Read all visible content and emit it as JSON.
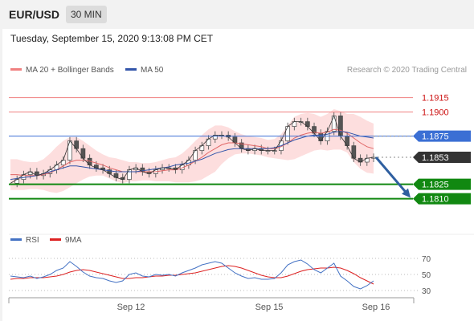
{
  "header": {
    "symbol": "EUR/USD",
    "timeframe": "30 MIN"
  },
  "timestamp": "Tuesday, September 15, 2020 9:13:08 PM CET",
  "legend": {
    "bb_label": "MA 20 + Bollinger Bands",
    "ma50_label": "MA 50",
    "credit": "Research © 2020 Trading Central",
    "rsi_label": "RSI",
    "rsi_ma_label": "9MA"
  },
  "colors": {
    "resistance": "#f08080",
    "resistance_text": "#cc1111",
    "pivot": "#3b6fd4",
    "last": "#333333",
    "support": "#118811",
    "bands": "#fcd6d6",
    "ma20": "#e06666",
    "ma50": "#3355aa",
    "arrow": "#2f5fa0",
    "rsi": "#4472c4",
    "rsi_ma": "#dd2222",
    "candle": "#666666"
  },
  "chart_data": [
    {
      "type": "line",
      "title": "",
      "x_ticks": [
        "Sep 12",
        "Sep 15",
        "Sep 16"
      ],
      "levels": [
        {
          "kind": "resistance",
          "label": "1.1915",
          "value": 1.1915
        },
        {
          "kind": "resistance",
          "label": "1.1900",
          "value": 1.19
        },
        {
          "kind": "pivot",
          "label": "1.1875",
          "value": 1.1875
        },
        {
          "kind": "last",
          "label": "1.1853",
          "value": 1.1853
        },
        {
          "kind": "support",
          "label": "1.1825",
          "value": 1.1825
        },
        {
          "kind": "support",
          "label": "1.1810",
          "value": 1.181
        }
      ],
      "ylim": [
        1.1783,
        1.1933
      ],
      "series": [
        {
          "name": "Price",
          "values": [
            1.1826,
            1.183,
            1.1835,
            1.1838,
            1.1834,
            1.1836,
            1.184,
            1.1845,
            1.185,
            1.187,
            1.1862,
            1.1852,
            1.1845,
            1.1842,
            1.184,
            1.1836,
            1.1832,
            1.183,
            1.184,
            1.1842,
            1.1838,
            1.1836,
            1.184,
            1.1842,
            1.1842,
            1.184,
            1.1845,
            1.185,
            1.186,
            1.1865,
            1.1872,
            1.1876,
            1.1876,
            1.1874,
            1.1868,
            1.1862,
            1.186,
            1.1862,
            1.186,
            1.186,
            1.186,
            1.187,
            1.1885,
            1.189,
            1.189,
            1.1885,
            1.1878,
            1.187,
            1.188,
            1.1896,
            1.1875,
            1.1865,
            1.1852,
            1.1848,
            1.1852,
            1.1853
          ]
        },
        {
          "name": "MA 20 + Bollinger Bands",
          "values": [
            1.1835,
            1.1835,
            1.1834,
            1.1834,
            1.1834,
            1.1835,
            1.1837,
            1.184,
            1.1844,
            1.1848,
            1.185,
            1.185,
            1.1849,
            1.1847,
            1.1845,
            1.1842,
            1.184,
            1.1838,
            1.1838,
            1.1838,
            1.1838,
            1.1838,
            1.1838,
            1.1839,
            1.184,
            1.184,
            1.1842,
            1.1845,
            1.1849,
            1.1853,
            1.1858,
            1.1862,
            1.1866,
            1.1868,
            1.1868,
            1.1867,
            1.1866,
            1.1865,
            1.1864,
            1.1862,
            1.1862,
            1.1864,
            1.1868,
            1.1873,
            1.1876,
            1.1878,
            1.1879,
            1.1878,
            1.1879,
            1.1882,
            1.1881,
            1.1878,
            1.1873,
            1.1868,
            1.1864,
            1.1862
          ],
          "band_width": [
            0.0016,
            0.0016,
            0.0015,
            0.0014,
            0.0014,
            0.0016,
            0.002,
            0.0024,
            0.0026,
            0.0026,
            0.0024,
            0.002,
            0.0016,
            0.0013,
            0.0011,
            0.0011,
            0.0012,
            0.0012,
            0.001,
            0.001,
            0.0009,
            0.0009,
            0.001,
            0.0011,
            0.0012,
            0.0013,
            0.0015,
            0.0018,
            0.0021,
            0.0023,
            0.0024,
            0.0024,
            0.002,
            0.0016,
            0.0012,
            0.001,
            0.0009,
            0.0009,
            0.0009,
            0.0009,
            0.001,
            0.0013,
            0.0018,
            0.0022,
            0.0022,
            0.0021,
            0.0019,
            0.0017,
            0.0019,
            0.0021,
            0.002,
            0.002,
            0.0025,
            0.0027,
            0.0027,
            0.0026
          ]
        },
        {
          "name": "MA 50",
          "values": [
            1.183,
            1.1831,
            1.1832,
            1.1833,
            1.1834,
            1.1836,
            1.1838,
            1.184,
            1.1842,
            1.1844,
            1.1844,
            1.1843,
            1.1842,
            1.1841,
            1.184,
            1.1839,
            1.1838,
            1.1838,
            1.1838,
            1.1838,
            1.1839,
            1.184,
            1.1841,
            1.1842,
            1.1843,
            1.1845,
            1.1846,
            1.1847,
            1.1849,
            1.1851,
            1.1854,
            1.1857,
            1.1859,
            1.1861,
            1.1862,
            1.1862,
            1.1862,
            1.1862,
            1.1862,
            1.1862,
            1.1863,
            1.1865,
            1.1868,
            1.1871,
            1.1873,
            1.1875,
            1.1876,
            1.1876,
            1.1877,
            1.1879,
            1.188,
            1.1879,
            1.1877,
            1.1875,
            1.1874,
            1.1873
          ]
        }
      ]
    },
    {
      "type": "line",
      "title": "",
      "y_ticks": [
        70,
        50,
        30
      ],
      "ylim": [
        20,
        80
      ],
      "series": [
        {
          "name": "RSI",
          "values": [
            48,
            47,
            46,
            48,
            45,
            47,
            50,
            55,
            58,
            66,
            60,
            53,
            48,
            46,
            45,
            42,
            40,
            42,
            50,
            52,
            48,
            47,
            50,
            49,
            50,
            48,
            52,
            55,
            58,
            62,
            64,
            66,
            64,
            58,
            52,
            48,
            45,
            46,
            44,
            44,
            45,
            52,
            62,
            66,
            68,
            63,
            56,
            52,
            58,
            64,
            48,
            42,
            35,
            32,
            36,
            42
          ]
        },
        {
          "name": "9MA",
          "values": [
            44,
            45,
            45,
            46,
            46,
            46,
            47,
            48,
            50,
            53,
            55,
            56,
            55,
            53,
            51,
            49,
            47,
            45,
            45,
            46,
            46,
            47,
            48,
            48,
            49,
            49,
            50,
            51,
            52,
            54,
            56,
            58,
            60,
            61,
            60,
            58,
            55,
            52,
            49,
            47,
            46,
            46,
            48,
            51,
            54,
            56,
            57,
            58,
            58,
            59,
            58,
            55,
            51,
            46,
            42,
            38
          ]
        }
      ]
    }
  ]
}
